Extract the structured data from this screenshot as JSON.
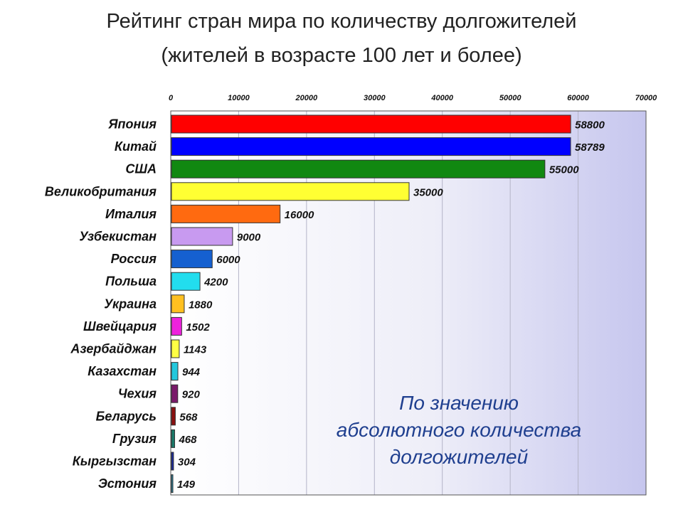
{
  "chart_data": {
    "type": "bar",
    "orientation": "horizontal",
    "title": "Рейтинг стран мира по количеству долгожителей",
    "subtitle": "(жителей в возрасте 100 лет и более)",
    "categories": [
      "Япония",
      "Китай",
      "США",
      "Великобритания",
      "Италия",
      "Узбекистан",
      "Россия",
      "Польша",
      "Украина",
      "Швейцария",
      "Азербайджан",
      "Казахстан",
      "Чехия",
      "Беларусь",
      "Грузия",
      "Кыргызстан",
      "Эстония"
    ],
    "values": [
      58800,
      58789,
      55000,
      35000,
      16000,
      9000,
      6000,
      4200,
      1880,
      1502,
      1143,
      944,
      920,
      568,
      468,
      304,
      149
    ],
    "value_labels": [
      "58800",
      "58789",
      "55000",
      "35000",
      "16000",
      "9000",
      "6000",
      "4200",
      "1880",
      "1502",
      "1143",
      "944",
      "920",
      "568",
      "468",
      "304",
      "149"
    ],
    "colors": [
      "#ff0000",
      "#0000ff",
      "#118811",
      "#ffff33",
      "#ff6a10",
      "#c89af0",
      "#1560d0",
      "#22ddee",
      "#ffc020",
      "#ee22dd",
      "#ffff44",
      "#22c8dd",
      "#7a1a6a",
      "#8a1010",
      "#1a7a6a",
      "#1a2aa0",
      "#2a90b0"
    ],
    "xlim": [
      0,
      70000
    ],
    "xticks": [
      0,
      10000,
      20000,
      30000,
      40000,
      50000,
      60000,
      70000
    ],
    "xtick_labels": [
      "0",
      "10000",
      "20000",
      "30000",
      "40000",
      "50000",
      "60000",
      "70000"
    ],
    "x_axis_position": "top",
    "grid": true,
    "legend": "none"
  },
  "annotation": {
    "lines": [
      "По значению",
      "абсолютного количества",
      "долгожителей"
    ],
    "color": "#1f3f8f"
  }
}
